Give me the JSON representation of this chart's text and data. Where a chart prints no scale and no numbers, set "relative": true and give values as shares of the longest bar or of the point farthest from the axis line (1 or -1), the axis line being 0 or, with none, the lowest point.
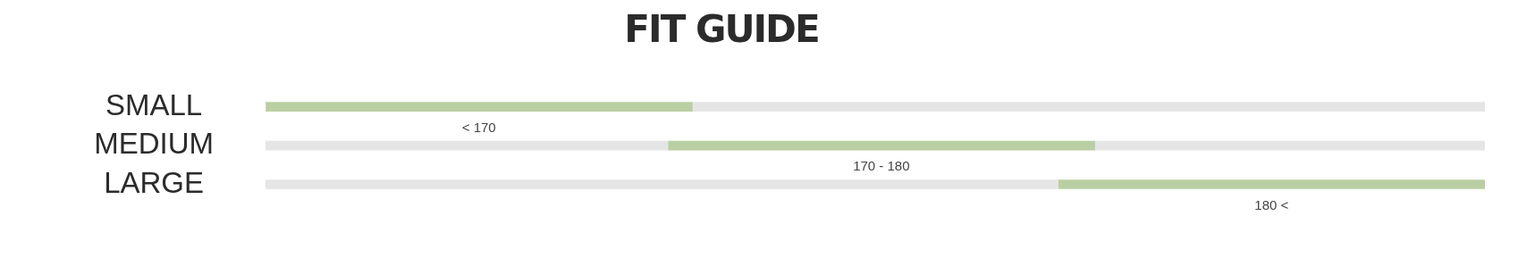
{
  "chart_data": {
    "type": "bar",
    "title": "FIT GUIDE",
    "orientation": "horizontal",
    "relative": true,
    "stacked": true,
    "categories": [
      "SMALL",
      "MEDIUM",
      "LARGE"
    ],
    "series": [
      {
        "color": "#e5e5e5",
        "values": [
          0,
          0.33,
          0.65
        ]
      },
      {
        "color": "#b9cfa3",
        "values": [
          0.35,
          0.35,
          0.35
        ]
      },
      {
        "color": "#e5e5e5",
        "values": [
          0.65,
          0.32,
          0
        ]
      }
    ],
    "annotations": [
      "< 170",
      "170 - 180",
      "180 <"
    ],
    "legend": false
  }
}
